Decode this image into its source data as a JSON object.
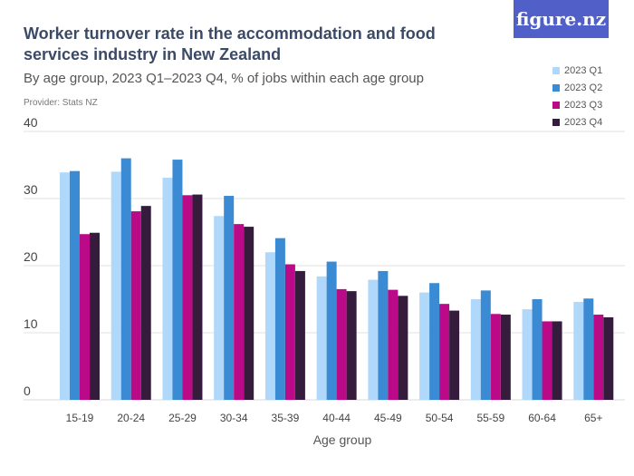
{
  "title": "Worker turnover rate in the accommodation and food services industry in New Zealand",
  "subtitle": "By age group, 2023 Q1–2023 Q4, % of jobs within each age group",
  "provider": "Provider: Stats NZ",
  "logo": "figure.nz",
  "chart_data": {
    "type": "bar",
    "xlabel": "Age group",
    "ylabel": "",
    "ylim": [
      0,
      40
    ],
    "yticks": [
      0,
      10,
      20,
      30,
      40
    ],
    "grid": true,
    "legend": "top-right",
    "categories": [
      "15-19",
      "20-24",
      "25-29",
      "30-34",
      "35-39",
      "40-44",
      "45-49",
      "50-54",
      "55-59",
      "60-64",
      "65+"
    ],
    "series": [
      {
        "name": "2023 Q1",
        "color": "#b0d8fb",
        "values": [
          33.9,
          34.0,
          33.1,
          27.4,
          22.0,
          18.4,
          17.9,
          16.0,
          15.0,
          13.5,
          14.6
        ]
      },
      {
        "name": "2023 Q2",
        "color": "#3a8ad4",
        "values": [
          34.1,
          36.0,
          35.8,
          30.4,
          24.1,
          20.6,
          19.2,
          17.4,
          16.3,
          15.0,
          15.1
        ]
      },
      {
        "name": "2023 Q3",
        "color": "#bb0a87",
        "values": [
          24.7,
          28.1,
          30.5,
          26.2,
          20.2,
          16.5,
          16.4,
          14.3,
          12.8,
          11.7,
          12.7
        ]
      },
      {
        "name": "2023 Q4",
        "color": "#351c3c",
        "values": [
          24.9,
          28.9,
          30.6,
          25.8,
          19.2,
          16.2,
          15.5,
          13.3,
          12.7,
          11.7,
          12.3
        ]
      }
    ]
  }
}
